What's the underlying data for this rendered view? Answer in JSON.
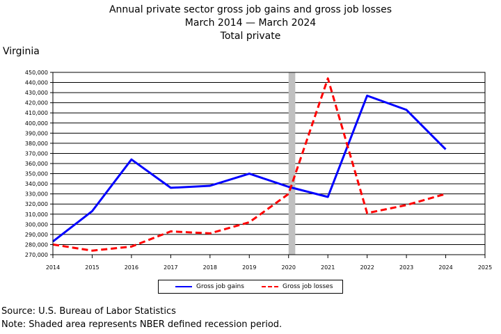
{
  "header": {
    "line1": "Annual private sector gross job gains and gross job losses",
    "line2": "March 2014 — March 2024",
    "line3": "Total private",
    "region": "Virginia"
  },
  "footer": {
    "source": "Source: U.S. Bureau of Labor Statistics",
    "note": "Note: Shaded area represents NBER defined recession period."
  },
  "chart_data": {
    "type": "line",
    "title": "Annual private sector gross job gains and gross job losses",
    "subtitle": "March 2014 — March 2024",
    "x": [
      2014,
      2015,
      2016,
      2017,
      2018,
      2019,
      2020,
      2021,
      2022,
      2023,
      2024
    ],
    "xlim": [
      2014,
      2025
    ],
    "xticks": [
      "2014",
      "2015",
      "2016",
      "2017",
      "2018",
      "2019",
      "2020",
      "2021",
      "2022",
      "2023",
      "2024",
      "2025"
    ],
    "ylim": [
      270000,
      450000
    ],
    "yticks": [
      "270,000",
      "280,000",
      "290,000",
      "300,000",
      "310,000",
      "320,000",
      "330,000",
      "340,000",
      "350,000",
      "360,000",
      "370,000",
      "380,000",
      "390,000",
      "400,000",
      "410,000",
      "420,000",
      "430,000",
      "440,000",
      "450,000"
    ],
    "recession": [
      2020,
      2020.17
    ],
    "grid": true,
    "legend_position": "bottom",
    "series": [
      {
        "name": "Gross job gains",
        "color": "#0000ff",
        "dash": "solid",
        "values": [
          283000,
          313000,
          364000,
          336000,
          338000,
          350000,
          337000,
          327000,
          427000,
          413000,
          374000
        ]
      },
      {
        "name": "Gross job losses",
        "color": "#ff0000",
        "dash": "dashed",
        "values": [
          280000,
          274000,
          278000,
          293000,
          291000,
          302000,
          330000,
          444000,
          311000,
          319000,
          330000
        ]
      }
    ]
  }
}
